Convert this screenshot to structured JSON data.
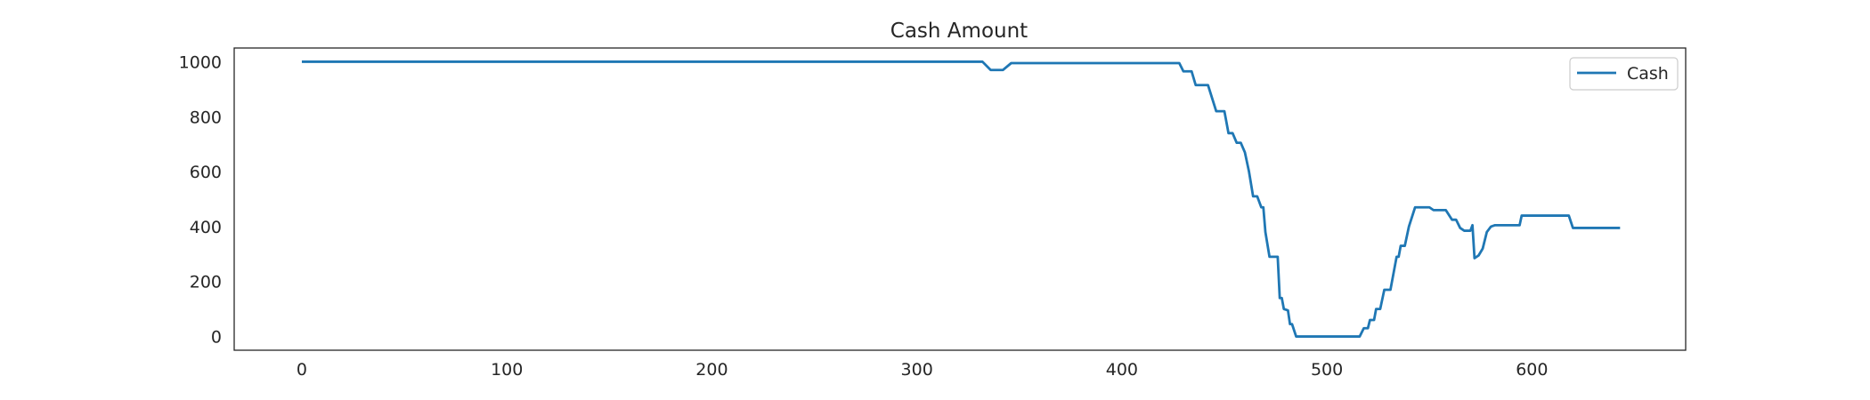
{
  "chart_data": {
    "type": "line",
    "title": "Cash Amount",
    "xlabel": "",
    "ylabel": "",
    "xlim": [
      -33,
      675
    ],
    "ylim": [
      -50,
      1050
    ],
    "xticks": [
      0,
      100,
      200,
      300,
      400,
      500,
      600
    ],
    "yticks": [
      0,
      200,
      400,
      600,
      800,
      1000
    ],
    "grid": false,
    "legend": {
      "position": "top-right",
      "entries": [
        "Cash"
      ]
    },
    "colors": {
      "Cash": "#1f77b4"
    },
    "series": [
      {
        "name": "Cash",
        "points": [
          [
            0,
            1000
          ],
          [
            332,
            1000
          ],
          [
            336,
            970
          ],
          [
            342,
            970
          ],
          [
            346,
            995
          ],
          [
            350,
            995
          ],
          [
            428,
            995
          ],
          [
            430,
            965
          ],
          [
            434,
            965
          ],
          [
            436,
            915
          ],
          [
            442,
            915
          ],
          [
            446,
            820
          ],
          [
            450,
            820
          ],
          [
            452,
            740
          ],
          [
            454,
            740
          ],
          [
            456,
            705
          ],
          [
            458,
            705
          ],
          [
            460,
            670
          ],
          [
            462,
            600
          ],
          [
            464,
            510
          ],
          [
            466,
            510
          ],
          [
            468,
            470
          ],
          [
            469,
            470
          ],
          [
            470,
            380
          ],
          [
            472,
            290
          ],
          [
            476,
            290
          ],
          [
            477,
            140
          ],
          [
            478,
            140
          ],
          [
            479,
            100
          ],
          [
            481,
            95
          ],
          [
            482,
            45
          ],
          [
            483,
            45
          ],
          [
            485,
            0
          ],
          [
            516,
            0
          ],
          [
            518,
            30
          ],
          [
            520,
            30
          ],
          [
            521,
            60
          ],
          [
            523,
            60
          ],
          [
            524,
            100
          ],
          [
            526,
            100
          ],
          [
            528,
            170
          ],
          [
            531,
            170
          ],
          [
            534,
            290
          ],
          [
            535,
            290
          ],
          [
            536,
            330
          ],
          [
            538,
            330
          ],
          [
            540,
            400
          ],
          [
            543,
            470
          ],
          [
            550,
            470
          ],
          [
            552,
            460
          ],
          [
            558,
            460
          ],
          [
            561,
            425
          ],
          [
            563,
            425
          ],
          [
            565,
            395
          ],
          [
            567,
            385
          ],
          [
            570,
            385
          ],
          [
            571,
            405
          ],
          [
            572,
            285
          ],
          [
            574,
            295
          ],
          [
            576,
            320
          ],
          [
            578,
            380
          ],
          [
            580,
            400
          ],
          [
            582,
            405
          ],
          [
            594,
            405
          ],
          [
            595,
            440
          ],
          [
            618,
            440
          ],
          [
            620,
            395
          ],
          [
            643,
            395
          ]
        ]
      }
    ]
  }
}
